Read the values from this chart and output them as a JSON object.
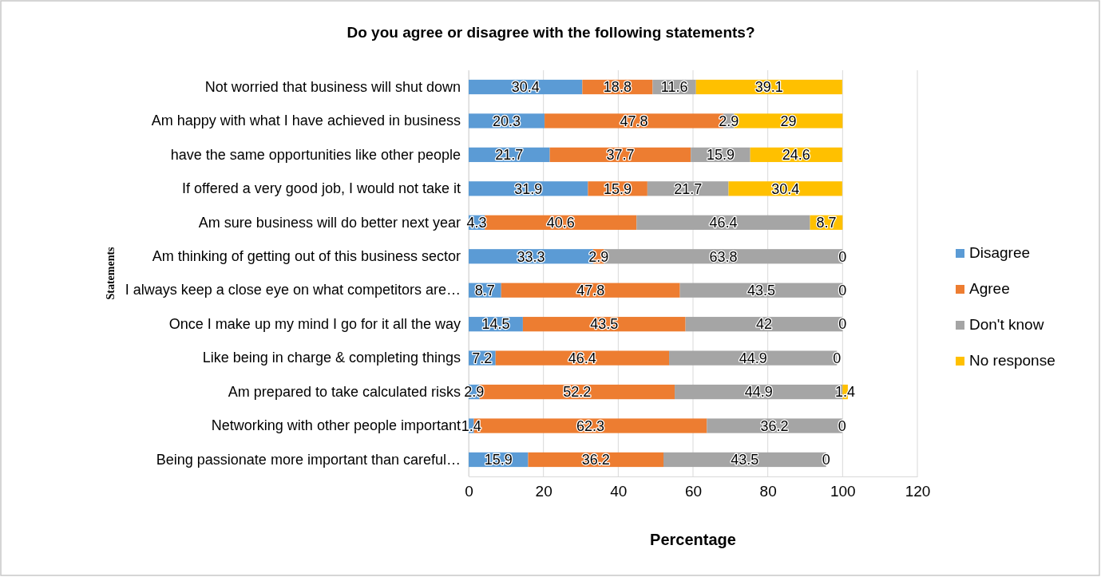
{
  "chart_data": {
    "type": "bar",
    "orientation": "horizontal",
    "stacked": true,
    "title": "Do you agree or disagree with the following statements?",
    "xlabel": "Percentage",
    "ylabel": "Statements",
    "categories": [
      "Not worried that business will shut down",
      "Am happy with what I have achieved in business",
      "have the same opportunities like other people",
      "If offered a very good job, I would not take it",
      "Am sure business will do better next year",
      "Am thinking of getting out of this business sector",
      "I always keep a close eye on what competitors are…",
      "Once I make up my mind I go for it all the way",
      "Like being in charge & completing things",
      "Am prepared to take calculated risks",
      "Networking with other people important",
      "Being passionate more important than careful…"
    ],
    "series": [
      {
        "name": "Disagree",
        "color": "#5b9bd5",
        "values": [
          30.4,
          20.3,
          21.7,
          31.9,
          4.3,
          33.3,
          8.7,
          14.5,
          7.2,
          2.9,
          1.4,
          15.9
        ]
      },
      {
        "name": "Agree",
        "color": "#ed7d31",
        "values": [
          18.8,
          47.8,
          37.7,
          15.9,
          40.6,
          2.9,
          47.8,
          43.5,
          46.4,
          52.2,
          62.3,
          36.2
        ]
      },
      {
        "name": "Don't know",
        "color": "#a5a5a5",
        "values": [
          11.6,
          2.9,
          15.9,
          21.7,
          46.4,
          63.8,
          43.5,
          42,
          44.9,
          44.9,
          36.2,
          43.5
        ]
      },
      {
        "name": "No response",
        "color": "#ffc000",
        "values": [
          39.1,
          29,
          24.6,
          30.4,
          8.7,
          0,
          0,
          0,
          0,
          1.4,
          0,
          0
        ]
      }
    ],
    "xlim": [
      0,
      120
    ],
    "xticks": [
      0,
      20,
      40,
      60,
      80,
      100,
      120
    ],
    "grid": "x",
    "legend": "right",
    "data_labels": true
  }
}
